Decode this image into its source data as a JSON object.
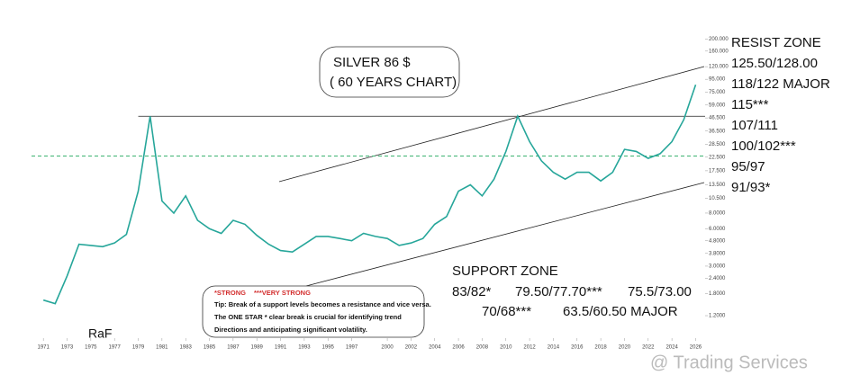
{
  "chart_data": {
    "type": "line",
    "title_lines": [
      "SILVER 86 $",
      "( 60 YEARS CHART)"
    ],
    "log_scale": true,
    "color": "#26a69a",
    "x": [
      1971,
      1972,
      1973,
      1974,
      1975,
      1976,
      1977,
      1978,
      1979,
      1980,
      1981,
      1982,
      1983,
      1984,
      1985,
      1986,
      1987,
      1988,
      1989,
      1990,
      1991,
      1992,
      1993,
      1994,
      1995,
      1996,
      1997,
      1998,
      1999,
      2000,
      2001,
      2002,
      2003,
      2004,
      2005,
      2006,
      2007,
      2008,
      2009,
      2010,
      2011,
      2012,
      2013,
      2014,
      2015,
      2016,
      2017,
      2018,
      2019,
      2020,
      2021,
      2022,
      2023,
      2024,
      2025,
      2026
    ],
    "values": [
      1.6,
      1.5,
      2.5,
      4.5,
      4.4,
      4.3,
      4.6,
      5.4,
      12,
      48,
      10,
      8,
      11,
      7,
      6,
      5.5,
      7,
      6.5,
      5.3,
      4.5,
      4,
      3.9,
      4.5,
      5.2,
      5.2,
      5,
      4.8,
      5.5,
      5.2,
      5,
      4.4,
      4.6,
      5,
      6.5,
      7.5,
      12,
      13.5,
      11,
      15,
      25,
      48,
      30,
      21,
      17,
      15,
      17,
      17,
      14.5,
      17,
      26,
      25,
      22,
      24,
      30,
      45,
      86
    ],
    "xlim": [
      1970,
      2026.8
    ],
    "xticks": [
      1971,
      1973,
      1975,
      1977,
      1979,
      1981,
      1983,
      1985,
      1987,
      1989,
      1991,
      1993,
      1995,
      1997,
      2000,
      2002,
      2004,
      2006,
      2008,
      2010,
      2012,
      2014,
      2016,
      2018,
      2020,
      2022,
      2024,
      2026
    ],
    "ylim": [
      1,
      230
    ],
    "yticks": [
      {
        "value": 200,
        "label": "200.000"
      },
      {
        "value": 160,
        "label": "160.000"
      },
      {
        "value": 120,
        "label": "120.000"
      },
      {
        "value": 95,
        "label": "95.000"
      },
      {
        "value": 75,
        "label": "75.000"
      },
      {
        "value": 59,
        "label": "59.000"
      },
      {
        "value": 46.5,
        "label": "46.500"
      },
      {
        "value": 36.5,
        "label": "36.500"
      },
      {
        "value": 28.5,
        "label": "28.500"
      },
      {
        "value": 22.5,
        "label": "22.500"
      },
      {
        "value": 17.5,
        "label": "17.500"
      },
      {
        "value": 13.5,
        "label": "13.500"
      },
      {
        "value": 10.5,
        "label": "10.500"
      },
      {
        "value": 8,
        "label": "8.0000"
      },
      {
        "value": 6,
        "label": "6.0000"
      },
      {
        "value": 4.8,
        "label": "4.8000"
      },
      {
        "value": 3.8,
        "label": "3.8000"
      },
      {
        "value": 3,
        "label": "3.0000"
      },
      {
        "value": 2.4,
        "label": "2.4000"
      },
      {
        "value": 1.8,
        "label": "1.8000"
      },
      {
        "value": 1.2,
        "label": "1.2000"
      }
    ],
    "resistance_level": 48,
    "dashed_level": 23,
    "resist_zone": {
      "title": "RESIST ZONE",
      "levels": [
        "125.50/128.00",
        "118/122 MAJOR",
        "115***",
        "107/111",
        "100/102***",
        "95/97",
        "91/93*"
      ]
    },
    "support_zone": {
      "title": "SUPPORT ZONE",
      "rows": [
        [
          "83/82*",
          "79.50/77.70***",
          "75.5/73.00"
        ],
        [
          "70/68***",
          "63.5/60.50 MAJOR"
        ]
      ]
    },
    "note": {
      "legend": [
        "*STRONG",
        "***VERY STRONG"
      ],
      "lines": [
        "Tip: Break of a support levels becomes a resistance and vice versa.",
        "The ONE STAR * clear break is crucial for identifying trend",
        "Directions and anticipating significant volatility."
      ]
    },
    "author": "RaF",
    "watermark": "@ Trading Services"
  }
}
